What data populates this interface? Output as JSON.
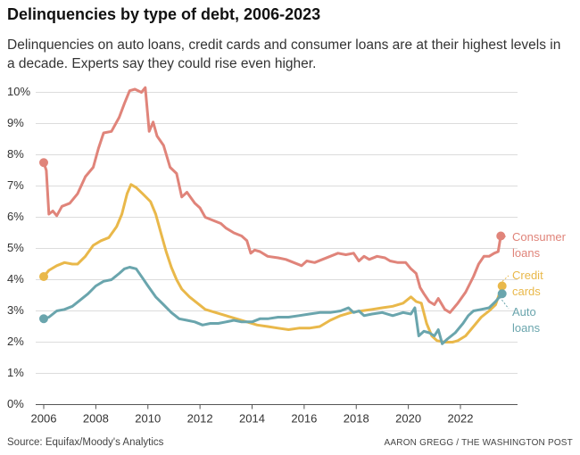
{
  "header": {
    "title": "Delinquencies by type of debt, 2006-2023",
    "subtitle": "Delinquencies on auto loans, credit cards and consumer loans are at their highest levels in a decade. Experts say they could rise even higher."
  },
  "footer": {
    "source": "Source: Equifax/Moody's Analytics",
    "credit": "AARON GREGG / THE WASHINGTON POST"
  },
  "chart_data": {
    "type": "line",
    "title": "",
    "xlabel": "",
    "ylabel": "",
    "xlim": [
      2005.8,
      2024.0
    ],
    "ylim": [
      0,
      10
    ],
    "x_ticks": [
      2006,
      2008,
      2010,
      2012,
      2014,
      2016,
      2018,
      2020,
      2022
    ],
    "y_ticks": [
      0,
      1,
      2,
      3,
      4,
      5,
      6,
      7,
      8,
      9,
      10
    ],
    "y_tick_labels": [
      "0%",
      "1%",
      "2%",
      "3%",
      "4%",
      "5%",
      "6%",
      "7%",
      "8%",
      "9%",
      "10%"
    ],
    "grid": "horizontal",
    "legend": "direct labels at right end of lines",
    "series": [
      {
        "name": "Consumer loans",
        "label_lines": [
          "Consumer",
          "loans"
        ],
        "color": "#e0847a",
        "points": [
          [
            2006.0,
            7.75
          ],
          [
            2006.1,
            7.5
          ],
          [
            2006.2,
            6.1
          ],
          [
            2006.35,
            6.2
          ],
          [
            2006.5,
            6.05
          ],
          [
            2006.7,
            6.35
          ],
          [
            2007.0,
            6.45
          ],
          [
            2007.3,
            6.75
          ],
          [
            2007.6,
            7.3
          ],
          [
            2007.9,
            7.6
          ],
          [
            2008.1,
            8.2
          ],
          [
            2008.3,
            8.7
          ],
          [
            2008.6,
            8.75
          ],
          [
            2008.9,
            9.2
          ],
          [
            2009.1,
            9.65
          ],
          [
            2009.3,
            10.05
          ],
          [
            2009.5,
            10.1
          ],
          [
            2009.75,
            10.0
          ],
          [
            2009.9,
            10.15
          ],
          [
            2010.05,
            8.75
          ],
          [
            2010.2,
            9.05
          ],
          [
            2010.35,
            8.6
          ],
          [
            2010.6,
            8.3
          ],
          [
            2010.85,
            7.6
          ],
          [
            2011.1,
            7.4
          ],
          [
            2011.3,
            6.65
          ],
          [
            2011.5,
            6.8
          ],
          [
            2011.8,
            6.45
          ],
          [
            2012.0,
            6.3
          ],
          [
            2012.2,
            6.0
          ],
          [
            2012.5,
            5.9
          ],
          [
            2012.8,
            5.8
          ],
          [
            2013.0,
            5.65
          ],
          [
            2013.3,
            5.5
          ],
          [
            2013.6,
            5.4
          ],
          [
            2013.8,
            5.25
          ],
          [
            2013.95,
            4.85
          ],
          [
            2014.1,
            4.95
          ],
          [
            2014.3,
            4.9
          ],
          [
            2014.6,
            4.75
          ],
          [
            2015.0,
            4.7
          ],
          [
            2015.3,
            4.65
          ],
          [
            2015.6,
            4.55
          ],
          [
            2015.9,
            4.45
          ],
          [
            2016.1,
            4.6
          ],
          [
            2016.4,
            4.55
          ],
          [
            2016.7,
            4.65
          ],
          [
            2017.0,
            4.75
          ],
          [
            2017.3,
            4.85
          ],
          [
            2017.6,
            4.8
          ],
          [
            2017.9,
            4.85
          ],
          [
            2018.1,
            4.6
          ],
          [
            2018.3,
            4.75
          ],
          [
            2018.5,
            4.65
          ],
          [
            2018.8,
            4.75
          ],
          [
            2019.1,
            4.7
          ],
          [
            2019.3,
            4.6
          ],
          [
            2019.6,
            4.55
          ],
          [
            2019.9,
            4.55
          ],
          [
            2020.1,
            4.35
          ],
          [
            2020.3,
            4.2
          ],
          [
            2020.45,
            3.75
          ],
          [
            2020.6,
            3.55
          ],
          [
            2020.8,
            3.3
          ],
          [
            2021.0,
            3.2
          ],
          [
            2021.15,
            3.4
          ],
          [
            2021.4,
            3.05
          ],
          [
            2021.6,
            2.95
          ],
          [
            2021.9,
            3.25
          ],
          [
            2022.2,
            3.6
          ],
          [
            2022.5,
            4.1
          ],
          [
            2022.7,
            4.5
          ],
          [
            2022.9,
            4.75
          ],
          [
            2023.1,
            4.75
          ],
          [
            2023.3,
            4.85
          ],
          [
            2023.45,
            4.9
          ],
          [
            2023.55,
            5.4
          ]
        ]
      },
      {
        "name": "Credit cards",
        "label_lines": [
          "Credit",
          "cards"
        ],
        "color": "#e9b84a",
        "points": [
          [
            2006.0,
            4.1
          ],
          [
            2006.2,
            4.3
          ],
          [
            2006.5,
            4.45
          ],
          [
            2006.8,
            4.55
          ],
          [
            2007.1,
            4.5
          ],
          [
            2007.3,
            4.5
          ],
          [
            2007.6,
            4.75
          ],
          [
            2007.9,
            5.1
          ],
          [
            2008.2,
            5.25
          ],
          [
            2008.5,
            5.35
          ],
          [
            2008.8,
            5.7
          ],
          [
            2009.0,
            6.1
          ],
          [
            2009.2,
            6.75
          ],
          [
            2009.35,
            7.05
          ],
          [
            2009.55,
            6.95
          ],
          [
            2009.8,
            6.75
          ],
          [
            2010.1,
            6.5
          ],
          [
            2010.3,
            6.1
          ],
          [
            2010.5,
            5.5
          ],
          [
            2010.7,
            4.9
          ],
          [
            2010.9,
            4.4
          ],
          [
            2011.1,
            4.0
          ],
          [
            2011.3,
            3.7
          ],
          [
            2011.6,
            3.45
          ],
          [
            2011.9,
            3.25
          ],
          [
            2012.2,
            3.05
          ],
          [
            2012.6,
            2.95
          ],
          [
            2013.0,
            2.85
          ],
          [
            2013.4,
            2.75
          ],
          [
            2013.8,
            2.65
          ],
          [
            2014.2,
            2.55
          ],
          [
            2014.6,
            2.5
          ],
          [
            2015.0,
            2.45
          ],
          [
            2015.4,
            2.4
          ],
          [
            2015.8,
            2.45
          ],
          [
            2016.2,
            2.45
          ],
          [
            2016.6,
            2.5
          ],
          [
            2017.0,
            2.7
          ],
          [
            2017.4,
            2.85
          ],
          [
            2017.8,
            2.95
          ],
          [
            2018.2,
            3.0
          ],
          [
            2018.6,
            3.05
          ],
          [
            2019.0,
            3.1
          ],
          [
            2019.4,
            3.15
          ],
          [
            2019.8,
            3.25
          ],
          [
            2020.1,
            3.45
          ],
          [
            2020.3,
            3.3
          ],
          [
            2020.5,
            3.25
          ],
          [
            2020.7,
            2.6
          ],
          [
            2020.9,
            2.2
          ],
          [
            2021.1,
            2.05
          ],
          [
            2021.4,
            2.0
          ],
          [
            2021.7,
            2.0
          ],
          [
            2021.9,
            2.05
          ],
          [
            2022.2,
            2.2
          ],
          [
            2022.5,
            2.5
          ],
          [
            2022.8,
            2.8
          ],
          [
            2023.1,
            3.0
          ],
          [
            2023.35,
            3.2
          ],
          [
            2023.6,
            3.8
          ]
        ]
      },
      {
        "name": "Auto loans",
        "label_lines": [
          "Auto",
          "loans"
        ],
        "color": "#6aa5ad",
        "points": [
          [
            2006.0,
            2.75
          ],
          [
            2006.2,
            2.8
          ],
          [
            2006.5,
            3.0
          ],
          [
            2006.8,
            3.05
          ],
          [
            2007.1,
            3.15
          ],
          [
            2007.4,
            3.35
          ],
          [
            2007.7,
            3.55
          ],
          [
            2008.0,
            3.8
          ],
          [
            2008.3,
            3.95
          ],
          [
            2008.6,
            4.0
          ],
          [
            2008.9,
            4.2
          ],
          [
            2009.1,
            4.35
          ],
          [
            2009.3,
            4.4
          ],
          [
            2009.55,
            4.35
          ],
          [
            2009.8,
            4.05
          ],
          [
            2010.0,
            3.8
          ],
          [
            2010.3,
            3.45
          ],
          [
            2010.6,
            3.2
          ],
          [
            2010.9,
            2.95
          ],
          [
            2011.2,
            2.75
          ],
          [
            2011.5,
            2.7
          ],
          [
            2011.8,
            2.65
          ],
          [
            2012.1,
            2.55
          ],
          [
            2012.4,
            2.6
          ],
          [
            2012.7,
            2.6
          ],
          [
            2013.0,
            2.65
          ],
          [
            2013.3,
            2.7
          ],
          [
            2013.6,
            2.65
          ],
          [
            2014.0,
            2.65
          ],
          [
            2014.3,
            2.75
          ],
          [
            2014.6,
            2.75
          ],
          [
            2015.0,
            2.8
          ],
          [
            2015.4,
            2.8
          ],
          [
            2015.8,
            2.85
          ],
          [
            2016.2,
            2.9
          ],
          [
            2016.6,
            2.95
          ],
          [
            2017.0,
            2.95
          ],
          [
            2017.4,
            3.0
          ],
          [
            2017.7,
            3.1
          ],
          [
            2017.9,
            2.95
          ],
          [
            2018.1,
            3.0
          ],
          [
            2018.3,
            2.85
          ],
          [
            2018.6,
            2.9
          ],
          [
            2019.0,
            2.95
          ],
          [
            2019.4,
            2.85
          ],
          [
            2019.8,
            2.95
          ],
          [
            2020.1,
            2.9
          ],
          [
            2020.25,
            3.1
          ],
          [
            2020.4,
            2.2
          ],
          [
            2020.6,
            2.35
          ],
          [
            2020.8,
            2.3
          ],
          [
            2021.0,
            2.2
          ],
          [
            2021.15,
            2.4
          ],
          [
            2021.3,
            1.95
          ],
          [
            2021.5,
            2.1
          ],
          [
            2021.8,
            2.3
          ],
          [
            2022.1,
            2.6
          ],
          [
            2022.3,
            2.85
          ],
          [
            2022.5,
            3.0
          ],
          [
            2022.8,
            3.05
          ],
          [
            2023.1,
            3.1
          ],
          [
            2023.35,
            3.3
          ],
          [
            2023.6,
            3.55
          ]
        ]
      }
    ]
  }
}
